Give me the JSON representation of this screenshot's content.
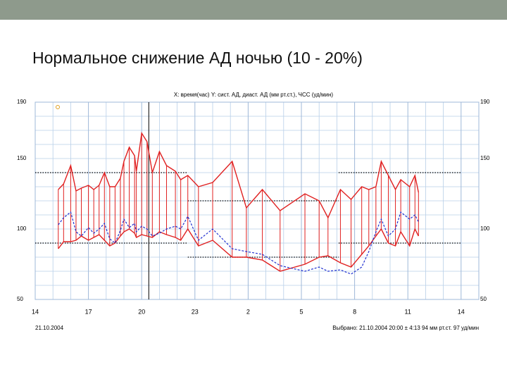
{
  "slide_title": "Нормальное снижение АД ночью (10 - 20%)",
  "chart_data": {
    "type": "line",
    "title": "X: время(час) Y: сист. АД, диаст. АД (мм рт.ст.), ЧСС (уд/мин)",
    "date_label": "21.10.2004",
    "footer": "Выбрано: 21.10.2004 20:00 ± 4:13  94 мм рт.ст.  97 уд/мин",
    "x": [
      15.3,
      15.6,
      16.0,
      16.3,
      16.6,
      17.0,
      17.3,
      17.6,
      17.9,
      18.2,
      18.5,
      18.8,
      19.0,
      19.3,
      19.6,
      19.7,
      20.0,
      20.3,
      20.6,
      21.0,
      21.4,
      21.9,
      22.2,
      22.6,
      23.2,
      24.0,
      25.1,
      25.9,
      26.8,
      27.8,
      29.2,
      30.0,
      30.5,
      31.2,
      31.8,
      32.4,
      32.8,
      33.2,
      33.5,
      33.9,
      34.3,
      34.6,
      35.1,
      35.4,
      35.6
    ],
    "series": [
      {
        "name": "сист. АД",
        "color": "#e02020",
        "values": [
          128,
          132,
          145,
          127,
          129,
          131,
          128,
          131,
          140,
          130,
          130,
          136,
          148,
          158,
          152,
          141,
          168,
          162,
          140,
          155,
          145,
          141,
          135,
          138,
          130,
          133,
          148,
          115,
          128,
          113,
          125,
          120,
          108,
          128,
          121,
          130,
          128,
          130,
          148,
          138,
          128,
          135,
          130,
          138,
          126
        ]
      },
      {
        "name": "диаст. АД",
        "color": "#e02020",
        "values": [
          86,
          91,
          91,
          92,
          95,
          92,
          94,
          96,
          92,
          88,
          90,
          95,
          98,
          100,
          97,
          94,
          96,
          95,
          94,
          98,
          96,
          94,
          92,
          100,
          88,
          92,
          80,
          80,
          78,
          70,
          75,
          80,
          81,
          76,
          73,
          82,
          88,
          95,
          100,
          90,
          88,
          98,
          88,
          100,
          95
        ]
      },
      {
        "name": "ЧСС",
        "color": "#2030d0",
        "values": [
          103,
          108,
          112,
          98,
          95,
          101,
          97,
          100,
          104,
          93,
          90,
          99,
          107,
          101,
          104,
          98,
          102,
          100,
          95,
          97,
          100,
          102,
          100,
          109,
          92,
          100,
          86,
          84,
          82,
          74,
          70,
          73,
          70,
          71,
          68,
          73,
          84,
          98,
          107,
          95,
          100,
          112,
          107,
          110,
          105
        ]
      }
    ],
    "thresholds": [
      {
        "value": 140,
        "from": 14,
        "to": 22.6
      },
      {
        "value": 90,
        "from": 14,
        "to": 22.6
      },
      {
        "value": 120,
        "from": 22.6,
        "to": 31.1
      },
      {
        "value": 80,
        "from": 22.6,
        "to": 31.1
      },
      {
        "value": 140,
        "from": 31.1,
        "to": 38
      },
      {
        "value": 90,
        "from": 31.1,
        "to": 38
      }
    ],
    "marker_x": 20.4,
    "xlim": [
      14,
      39
    ],
    "xticks": [
      14,
      17,
      20,
      23,
      {
        "value": 26,
        "label": "2"
      },
      {
        "value": 29,
        "label": "5"
      },
      {
        "value": 32,
        "label": "8"
      },
      {
        "value": 35,
        "label": "11"
      },
      {
        "value": 38,
        "label": "14"
      }
    ],
    "minor_xticks": [
      15,
      16,
      18,
      19,
      21,
      22,
      24,
      25,
      27,
      28,
      30,
      31,
      33,
      34,
      36,
      37
    ],
    "ylim": [
      50,
      190
    ],
    "yticks": [
      50,
      100,
      150,
      190
    ],
    "minor_yticks": [
      60,
      70,
      80,
      90,
      110,
      120,
      130,
      140,
      160,
      170,
      180
    ],
    "y2lim": [
      50,
      190
    ],
    "y2ticks": [
      50,
      100,
      150,
      190
    ]
  }
}
